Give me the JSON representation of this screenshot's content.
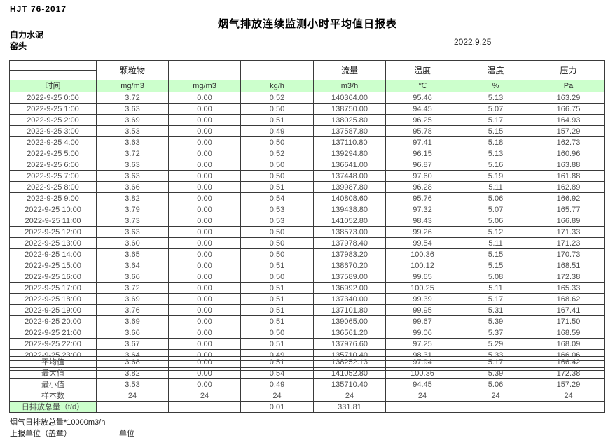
{
  "doc": {
    "standard": "HJT  76-2017",
    "title": "烟气排放连续监测小时平均值日报表",
    "company": "自力水泥",
    "station": "窑头",
    "date": "2022.9.25"
  },
  "table": {
    "accent_green": "#ccffcc",
    "group_headers": [
      "",
      "颗粒物",
      "",
      "",
      "流量",
      "温度",
      "湿度",
      "压力"
    ],
    "unit_row": [
      "时间",
      "mg/m3",
      "mg/m3",
      "kg/h",
      "m3/h",
      "℃",
      "%",
      "Pa"
    ],
    "rows": [
      {
        "time": "2022-9-25 0:00",
        "values": [
          "3.72",
          "0.00",
          "0.52",
          "140364.00",
          "95.46",
          "5.13",
          "163.29"
        ]
      },
      {
        "time": "2022-9-25 1:00",
        "values": [
          "3.63",
          "0.00",
          "0.50",
          "138750.00",
          "94.45",
          "5.07",
          "166.75"
        ]
      },
      {
        "time": "2022-9-25 2:00",
        "values": [
          "3.69",
          "0.00",
          "0.51",
          "138025.80",
          "96.25",
          "5.17",
          "164.93"
        ]
      },
      {
        "time": "2022-9-25 3:00",
        "values": [
          "3.53",
          "0.00",
          "0.49",
          "137587.80",
          "95.78",
          "5.15",
          "157.29"
        ]
      },
      {
        "time": "2022-9-25 4:00",
        "values": [
          "3.63",
          "0.00",
          "0.50",
          "137110.80",
          "97.41",
          "5.18",
          "162.73"
        ]
      },
      {
        "time": "2022-9-25 5:00",
        "values": [
          "3.72",
          "0.00",
          "0.52",
          "139294.80",
          "96.15",
          "5.13",
          "160.96"
        ]
      },
      {
        "time": "2022-9-25 6:00",
        "values": [
          "3.63",
          "0.00",
          "0.50",
          "136641.00",
          "96.87",
          "5.16",
          "163.88"
        ]
      },
      {
        "time": "2022-9-25 7:00",
        "values": [
          "3.63",
          "0.00",
          "0.50",
          "137448.00",
          "97.60",
          "5.19",
          "161.88"
        ]
      },
      {
        "time": "2022-9-25 8:00",
        "values": [
          "3.66",
          "0.00",
          "0.51",
          "139987.80",
          "96.28",
          "5.11",
          "162.89"
        ]
      },
      {
        "time": "2022-9-25 9:00",
        "values": [
          "3.82",
          "0.00",
          "0.54",
          "140808.60",
          "95.76",
          "5.06",
          "166.92"
        ]
      },
      {
        "time": "2022-9-25 10:00",
        "values": [
          "3.79",
          "0.00",
          "0.53",
          "139438.80",
          "97.32",
          "5.07",
          "165.77"
        ]
      },
      {
        "time": "2022-9-25 11:00",
        "values": [
          "3.73",
          "0.00",
          "0.53",
          "141052.80",
          "98.43",
          "5.06",
          "166.89"
        ]
      },
      {
        "time": "2022-9-25 12:00",
        "values": [
          "3.63",
          "0.00",
          "0.50",
          "138573.00",
          "99.26",
          "5.12",
          "171.33"
        ]
      },
      {
        "time": "2022-9-25 13:00",
        "values": [
          "3.60",
          "0.00",
          "0.50",
          "137978.40",
          "99.54",
          "5.11",
          "171.23"
        ]
      },
      {
        "time": "2022-9-25 14:00",
        "values": [
          "3.65",
          "0.00",
          "0.50",
          "137983.20",
          "100.36",
          "5.15",
          "170.73"
        ]
      },
      {
        "time": "2022-9-25 15:00",
        "values": [
          "3.64",
          "0.00",
          "0.51",
          "138670.20",
          "100.12",
          "5.15",
          "168.51"
        ]
      },
      {
        "time": "2022-9-25 16:00",
        "values": [
          "3.66",
          "0.00",
          "0.50",
          "137589.00",
          "99.65",
          "5.08",
          "172.38"
        ]
      },
      {
        "time": "2022-9-25 17:00",
        "values": [
          "3.72",
          "0.00",
          "0.51",
          "136992.00",
          "100.25",
          "5.11",
          "165.33"
        ]
      },
      {
        "time": "2022-9-25 18:00",
        "values": [
          "3.69",
          "0.00",
          "0.51",
          "137340.00",
          "99.39",
          "5.17",
          "168.62"
        ]
      },
      {
        "time": "2022-9-25 19:00",
        "values": [
          "3.76",
          "0.00",
          "0.51",
          "137101.80",
          "99.95",
          "5.31",
          "167.41"
        ]
      },
      {
        "time": "2022-9-25 20:00",
        "values": [
          "3.69",
          "0.00",
          "0.51",
          "139065.00",
          "99.67",
          "5.39",
          "171.50"
        ]
      },
      {
        "time": "2022-9-25 21:00",
        "values": [
          "3.66",
          "0.00",
          "0.50",
          "136561.20",
          "99.06",
          "5.37",
          "168.59"
        ]
      },
      {
        "time": "2022-9-25 22:00",
        "values": [
          "3.67",
          "0.00",
          "0.51",
          "137976.60",
          "97.25",
          "5.29",
          "168.09"
        ]
      },
      {
        "time": "2022-9-25 23:00",
        "values": [
          "3.64",
          "0.00",
          "0.49",
          "135710.40",
          "98.31",
          "5.33",
          "166.06"
        ]
      }
    ],
    "summary": [
      {
        "label": "平均值",
        "values": [
          "3.68",
          "0.00",
          "0.51",
          "138252.13",
          "97.94",
          "5.17",
          "166.42"
        ],
        "label_highlight": false
      },
      {
        "label": "最大值",
        "values": [
          "3.82",
          "0.00",
          "0.54",
          "141052.80",
          "100.36",
          "5.39",
          "172.38"
        ],
        "label_highlight": false
      },
      {
        "label": "最小值",
        "values": [
          "3.53",
          "0.00",
          "0.49",
          "135710.40",
          "94.45",
          "5.06",
          "157.29"
        ],
        "label_highlight": false
      },
      {
        "label": "样本数",
        "values": [
          "24",
          "24",
          "24",
          "24",
          "24",
          "24",
          "24"
        ],
        "label_highlight": false
      },
      {
        "label": "日排放总量（t/d）",
        "values": [
          "",
          "",
          "0.01",
          "331.81",
          "",
          "",
          ""
        ],
        "label_highlight": true
      }
    ]
  },
  "footer": {
    "note": "烟气日排放总量*10000m3/h",
    "report_unit_label": "上报单位（盖章）",
    "unit_label": "单位"
  }
}
